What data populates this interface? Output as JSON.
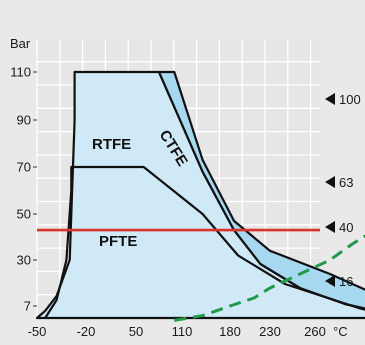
{
  "chart_data": {
    "type": "area",
    "title": "",
    "ylabel": "Bar",
    "xunit": "°C",
    "x_ticks": [
      "-50",
      "-20",
      "50",
      "110",
      "180",
      "230",
      "260"
    ],
    "y_ticks": [
      "7",
      "30",
      "50",
      "70",
      "90",
      "110"
    ],
    "right_markers": [
      "100",
      "63",
      "40",
      "16"
    ],
    "grid": true,
    "regions": [
      {
        "name": "RTFE",
        "fill": "#cfe9f7",
        "outline_x": [
          -50,
          -45,
          -38,
          -30,
          -27,
          -27,
          80,
          140,
          185,
          218,
          250,
          280,
          300,
          303,
          303,
          -50
        ],
        "outline_y": [
          2,
          5,
          12,
          30,
          90,
          110,
          110,
          68,
          43,
          28,
          16,
          8,
          5,
          3,
          2,
          2
        ]
      },
      {
        "name": "CTFE",
        "fill": "#a6d8ef",
        "outline_x": [
          80,
          100,
          140,
          185,
          230,
          270,
          300,
          318,
          318,
          300,
          280,
          250,
          218,
          185,
          140
        ],
        "outline_y": [
          110,
          110,
          73,
          47,
          34,
          23,
          13,
          7,
          5,
          5,
          8,
          16,
          28,
          43,
          68
        ]
      }
    ],
    "boundary_lines": [
      {
        "name": "PFTE",
        "x": [
          -45,
          -38,
          -32,
          -29,
          -29,
          60,
          140,
          190,
          240,
          290,
          310
        ],
        "y": [
          2,
          10,
          30,
          60,
          70,
          70,
          50,
          32,
          18,
          6,
          3
        ]
      }
    ],
    "limit_line": {
      "y": 43,
      "color": "#d9342b"
    },
    "dashed_curve": {
      "color": "#22994a",
      "x": [
        100,
        140,
        180,
        210,
        230,
        250,
        270,
        285,
        300,
        320
      ],
      "y": [
        1,
        3,
        7,
        11,
        16,
        23,
        30,
        37,
        43,
        50
      ]
    }
  }
}
